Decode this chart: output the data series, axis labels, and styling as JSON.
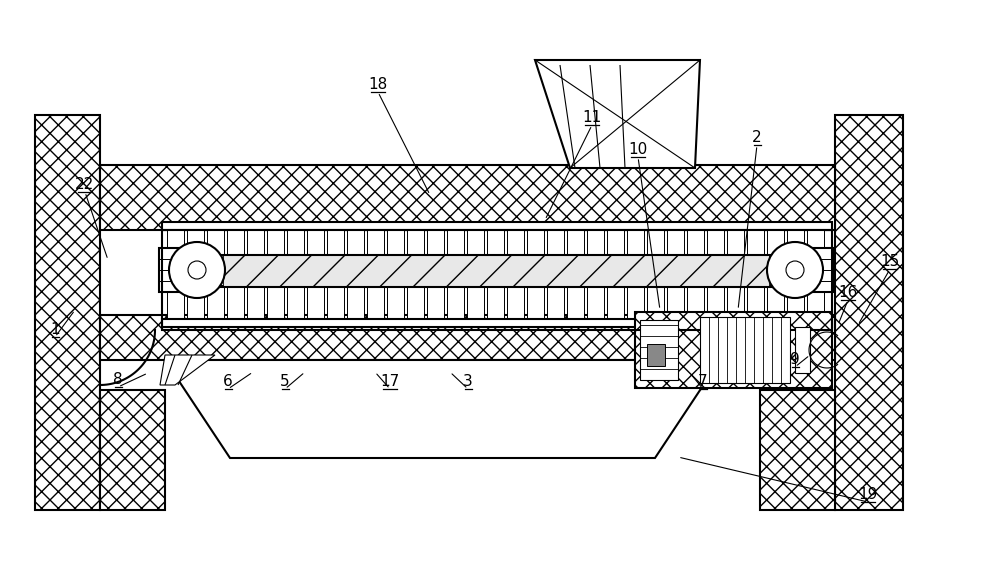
{
  "bg_color": "#ffffff",
  "line_color": "#000000",
  "fig_width": 10.0,
  "fig_height": 5.77,
  "lw_main": 1.5,
  "lw_thin": 0.8,
  "labels_data": [
    [
      "1",
      55,
      340,
      75,
      310
    ],
    [
      "8",
      118,
      390,
      148,
      373
    ],
    [
      "6",
      228,
      392,
      253,
      372
    ],
    [
      "5",
      285,
      392,
      305,
      372
    ],
    [
      "17",
      390,
      392,
      375,
      372
    ],
    [
      "3",
      468,
      392,
      450,
      372
    ],
    [
      "7",
      703,
      392,
      690,
      373
    ],
    [
      "9",
      795,
      370,
      810,
      355
    ],
    [
      "16",
      848,
      303,
      838,
      325
    ],
    [
      "15",
      890,
      272,
      858,
      325
    ],
    [
      "2",
      757,
      148,
      738,
      310
    ],
    [
      "10",
      638,
      160,
      660,
      310
    ],
    [
      "11",
      592,
      128,
      545,
      220
    ],
    [
      "18",
      378,
      95,
      430,
      195
    ],
    [
      "19",
      868,
      505,
      678,
      457
    ],
    [
      "22",
      85,
      195,
      108,
      260
    ]
  ]
}
